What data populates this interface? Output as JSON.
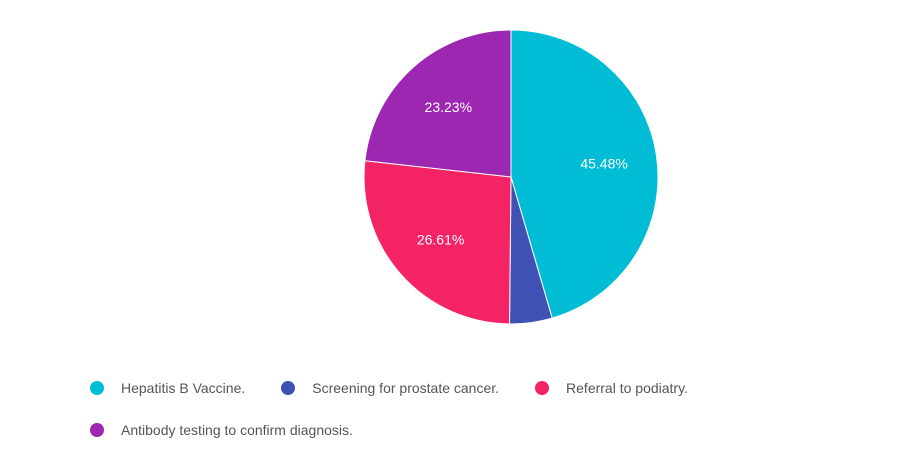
{
  "chart_data": {
    "type": "pie",
    "slices": [
      {
        "label": "Hepatitis B Vaccine.",
        "value": 45.48,
        "color": "#00bcd4",
        "data_label": "45.48%"
      },
      {
        "label": "Screening for prostate cancer.",
        "value": 4.68,
        "color": "#3f51b5",
        "data_label": ""
      },
      {
        "label": "Referral to podiatry.",
        "value": 26.61,
        "color": "#f32364",
        "data_label": "26.61%"
      },
      {
        "label": "Antibody testing to confirm diagnosis.",
        "value": 23.23,
        "color": "#9c27b0",
        "data_label": "23.23%"
      }
    ],
    "start_angle_deg": 0,
    "direction": "clockwise",
    "legend_position": "bottom"
  },
  "legend": {
    "items": [
      {
        "label": "Hepatitis B Vaccine.",
        "color": "#00bcd4"
      },
      {
        "label": "Screening for prostate cancer.",
        "color": "#3f51b5"
      },
      {
        "label": "Referral to podiatry.",
        "color": "#f32364"
      },
      {
        "label": "Antibody testing to confirm diagnosis.",
        "color": "#9c27b0"
      }
    ]
  }
}
